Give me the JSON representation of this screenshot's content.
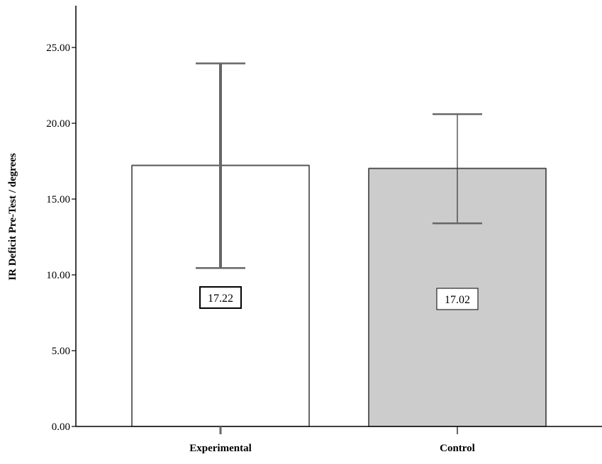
{
  "chart_data": {
    "type": "bar",
    "title": "",
    "xlabel": "",
    "ylabel": "IR Deficit Pre-Test / degrees",
    "categories": [
      "Experimental",
      "Control"
    ],
    "values": [
      17.22,
      17.02
    ],
    "value_labels": [
      "17.22",
      "17.02"
    ],
    "error_bars": [
      {
        "low": 10.45,
        "high": 23.95
      },
      {
        "low": 13.4,
        "high": 20.6
      }
    ],
    "bar_colors": [
      "#ffffff",
      "#cccccc"
    ],
    "ylim": [
      0,
      27.5
    ],
    "yticks": [
      0,
      5,
      10,
      15,
      20,
      25
    ],
    "ytick_labels": [
      "0.00",
      "5.00",
      "10.00",
      "15.00",
      "20.00",
      "25.00"
    ],
    "grid": false,
    "legend": "none"
  }
}
